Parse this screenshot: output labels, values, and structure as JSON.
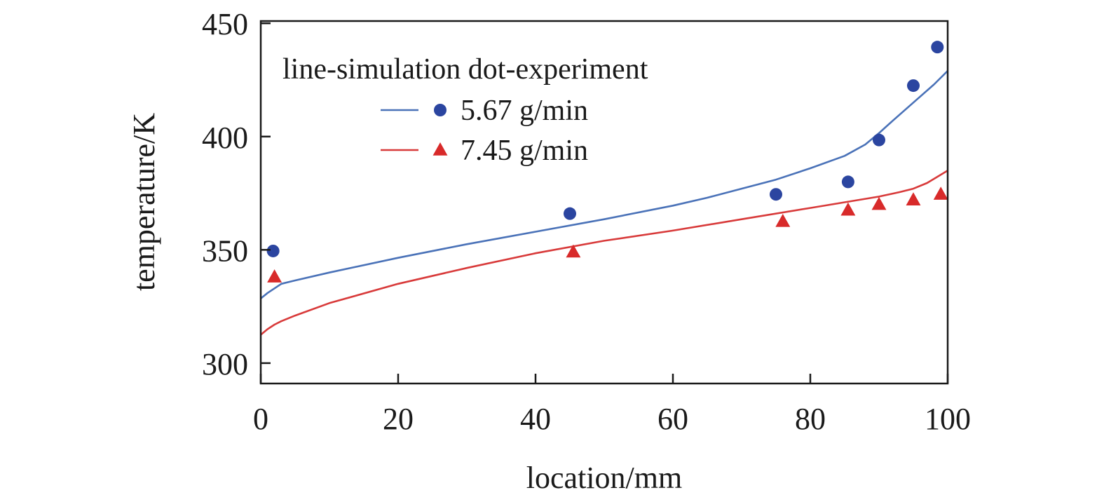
{
  "chart_data": {
    "type": "line",
    "xlabel": "location/mm",
    "ylabel": "temperature/K",
    "xlim": [
      0,
      100
    ],
    "ylim": [
      291,
      451
    ],
    "xticks": [
      0,
      20,
      40,
      60,
      80,
      100
    ],
    "yticks": [
      300,
      350,
      400,
      450
    ],
    "legend": {
      "placement": "top-left",
      "header": "line-simulation dot-experiment",
      "entries": [
        "5.67 g/min",
        "7.45 g/min"
      ]
    },
    "series": [
      {
        "name": "5.67 g/min",
        "color": "#4a72b8",
        "marker_color": "#2b45a0",
        "marker": "circle",
        "line": {
          "x": [
            0,
            1,
            2,
            3,
            5,
            10,
            20,
            30,
            40,
            50,
            60,
            65,
            70,
            75,
            80,
            85,
            88,
            90,
            92,
            95,
            98,
            100
          ],
          "y": [
            328.5,
            331,
            333,
            335,
            336.5,
            340,
            346.5,
            352.5,
            358,
            363.5,
            369.5,
            373,
            377,
            381,
            386,
            391.5,
            396.5,
            401.5,
            407,
            415,
            423,
            429
          ]
        },
        "points": {
          "x": [
            1.8,
            45,
            75,
            85.5,
            90,
            95,
            98.5
          ],
          "y": [
            349.5,
            366,
            374.5,
            380,
            398.5,
            422.5,
            439.5
          ]
        }
      },
      {
        "name": "7.45 g/min",
        "color": "#d83a3a",
        "marker_color": "#d82a2a",
        "marker": "triangle",
        "line": {
          "x": [
            0,
            1,
            2,
            3,
            5,
            10,
            20,
            30,
            40,
            50,
            60,
            70,
            80,
            85,
            90,
            93,
            95,
            97,
            100
          ],
          "y": [
            312.5,
            315,
            317,
            318.5,
            321,
            326.5,
            335,
            342,
            348.5,
            354,
            358.5,
            363.5,
            368.5,
            371,
            373.5,
            375.5,
            377,
            379.5,
            385
          ]
        },
        "points": {
          "x": [
            2,
            45.5,
            76,
            85.5,
            90,
            95,
            99
          ],
          "y": [
            338,
            349,
            362.5,
            367.5,
            370,
            372,
            374.5
          ]
        }
      }
    ]
  }
}
